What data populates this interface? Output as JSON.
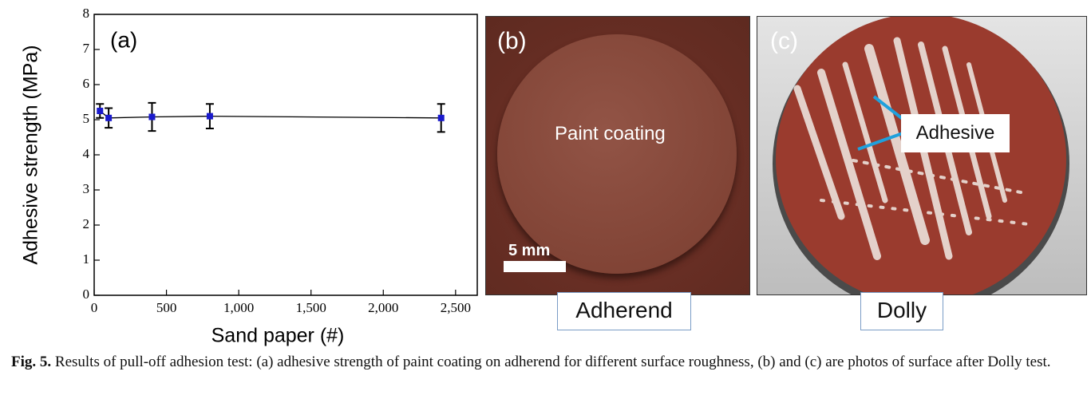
{
  "chart_data": {
    "type": "line",
    "panel_label": "(a)",
    "x_label": "Sand paper (#)",
    "y_label": "Adhesive strength (MPa)",
    "x": [
      40,
      100,
      400,
      800,
      2400
    ],
    "series": [
      {
        "color": "#1a1acc",
        "values": [
          5.25,
          5.05,
          5.08,
          5.1,
          5.05
        ],
        "errors": [
          0.2,
          0.28,
          0.4,
          0.35,
          0.4
        ]
      }
    ],
    "xlim": [
      0,
      2650
    ],
    "ylim": [
      0,
      8
    ],
    "xticks": [
      0,
      500,
      {
        "value": 1000,
        "label": "1,000"
      },
      {
        "value": 1500,
        "label": "1,500"
      },
      {
        "value": 2000,
        "label": "2,000"
      },
      {
        "value": 2500,
        "label": "2,500"
      }
    ],
    "yticks": [
      0,
      1,
      2,
      3,
      4,
      5,
      6,
      7,
      8
    ],
    "grid": false
  },
  "panels": [
    {
      "label": "(b)",
      "annotation": "Paint coating",
      "scale_bar": "5 mm",
      "caption": "Adherend"
    },
    {
      "label": "(c)",
      "annotation": "Adhesive",
      "caption": "Dolly"
    }
  ],
  "caption": {
    "number": "Fig. 5.",
    "text": "Results of pull-off adhesion test: (a) adhesive strength of paint coating on adherend for different surface roughness, (b) and (c) are photos of surface after Dolly test."
  }
}
